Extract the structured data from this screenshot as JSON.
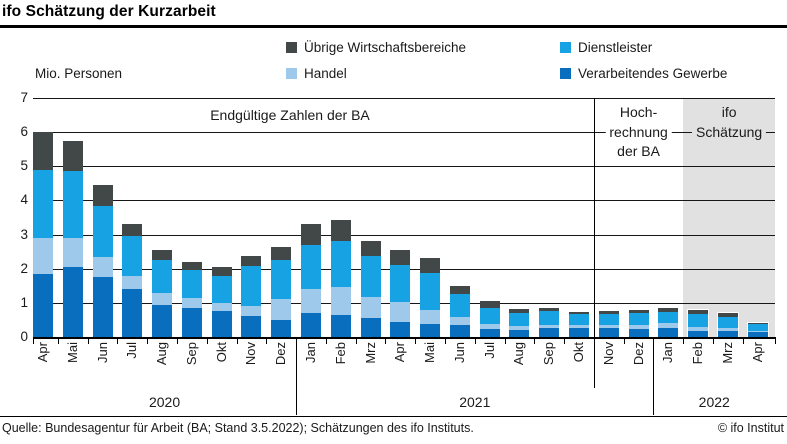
{
  "header": {
    "title": "ifo Schätzung der Kurzarbeit"
  },
  "legend": [
    {
      "label": "Übrige Wirtschaftsbereiche",
      "color": "#424747"
    },
    {
      "label": "Dienstleister",
      "color": "#16a2e3"
    },
    {
      "label": "Handel",
      "color": "#9fc9ea"
    },
    {
      "label": "Verarbeitendes Gewerbe",
      "color": "#0a6ebf"
    }
  ],
  "chart_data": {
    "type": "bar",
    "subtype": "stacked",
    "unit_label": "Mio. Personen",
    "ylim": [
      0,
      7
    ],
    "yticks": [
      0,
      1,
      2,
      3,
      4,
      5,
      6,
      7
    ],
    "grid": true,
    "categories": [
      "Apr",
      "Mai",
      "Jun",
      "Jul",
      "Aug",
      "Sep",
      "Okt",
      "Nov",
      "Dez",
      "Jan",
      "Feb",
      "Mrz",
      "Apr",
      "Mai",
      "Jun",
      "Jul",
      "Aug",
      "Sep",
      "Okt",
      "Nov",
      "Dez",
      "Jan",
      "Feb",
      "Mrz",
      "Apr"
    ],
    "year_groups": [
      {
        "label": "2020",
        "start": 0,
        "end": 8
      },
      {
        "label": "2021",
        "start": 9,
        "end": 20
      },
      {
        "label": "2022",
        "start": 21,
        "end": 24
      }
    ],
    "series": [
      {
        "name": "Verarbeitendes Gewerbe",
        "color": "#0a6ebf",
        "values": [
          1.85,
          2.05,
          1.75,
          1.4,
          0.95,
          0.85,
          0.75,
          0.6,
          0.5,
          0.7,
          0.65,
          0.55,
          0.45,
          0.37,
          0.34,
          0.23,
          0.2,
          0.25,
          0.25,
          0.25,
          0.22,
          0.27,
          0.18,
          0.17,
          0.14
        ]
      },
      {
        "name": "Handel",
        "color": "#9fc9ea",
        "values": [
          1.05,
          0.85,
          0.6,
          0.4,
          0.33,
          0.3,
          0.25,
          0.3,
          0.6,
          0.7,
          0.8,
          0.63,
          0.56,
          0.43,
          0.24,
          0.16,
          0.11,
          0.11,
          0.09,
          0.11,
          0.14,
          0.14,
          0.1,
          0.1,
          0.03
        ]
      },
      {
        "name": "Dienstleister",
        "color": "#16a2e3",
        "values": [
          2.0,
          1.95,
          1.5,
          1.15,
          0.97,
          0.82,
          0.8,
          1.17,
          1.15,
          1.3,
          1.36,
          1.19,
          1.1,
          1.07,
          0.69,
          0.46,
          0.39,
          0.39,
          0.32,
          0.3,
          0.33,
          0.32,
          0.4,
          0.31,
          0.2
        ]
      },
      {
        "name": "Übrige Wirtschaftsbereiche",
        "color": "#424747",
        "values": [
          1.1,
          0.9,
          0.6,
          0.35,
          0.29,
          0.22,
          0.25,
          0.29,
          0.4,
          0.6,
          0.61,
          0.45,
          0.44,
          0.45,
          0.21,
          0.19,
          0.11,
          0.1,
          0.07,
          0.09,
          0.09,
          0.12,
          0.11,
          0.11,
          0.04
        ]
      }
    ],
    "annotations": [
      {
        "id": "ba-final",
        "text": "Endgültige Zahlen der BA",
        "start": 0,
        "end": 18,
        "bg": "#ffffff"
      },
      {
        "id": "ba-hochrechnung",
        "text": "Hoch-\nrechnung\nder BA",
        "start": 19,
        "end": 21,
        "bg": "#ffffff"
      },
      {
        "id": "ifo-schaetzung",
        "text": "ifo\nSchätzung",
        "start": 22,
        "end": 24,
        "bg": "#e1e1e1"
      }
    ],
    "shaded_region": {
      "start": 22,
      "end": 24,
      "color": "#e1e1e1"
    }
  },
  "footer": {
    "source": "Quelle: Bundesagentur für Arbeit (BA; Stand 3.5.2022); Schätzungen des ifo Instituts.",
    "copyright": "© ifo Institut"
  }
}
